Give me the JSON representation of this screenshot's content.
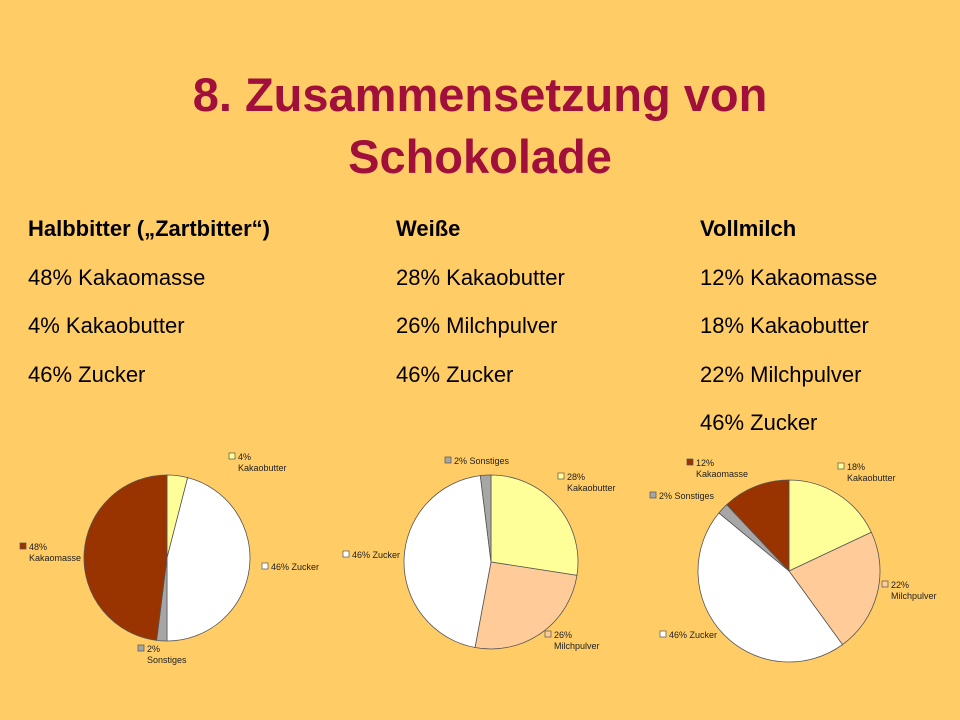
{
  "slide": {
    "title_line1": "8. Zusammensetzung von",
    "title_line2": "Schokolade",
    "colors": {
      "background": "#FFCC66",
      "title": "#A0103A"
    }
  },
  "columns": [
    {
      "heading": "Halbbitter („Zartbitter“)",
      "items": [
        "48% Kakaomasse",
        "4% Kakaobutter",
        "46% Zucker"
      ]
    },
    {
      "heading": "Weiße",
      "items": [
        "28% Kakaobutter",
        "26% Milchpulver",
        "46% Zucker"
      ]
    },
    {
      "heading": "Vollmilch",
      "items": [
        "12% Kakaomasse",
        "18% Kakaobutter",
        "22% Milchpulver",
        "46% Zucker"
      ]
    }
  ],
  "chart_data": [
    {
      "type": "pie",
      "title": "",
      "slices": [
        {
          "pct": "4%",
          "name": "Kakaobutter",
          "value": 4,
          "color": "#FFFF99"
        },
        {
          "pct": "46%",
          "name": "Zucker",
          "value": 46,
          "color": "#FFFFFF"
        },
        {
          "pct": "2%",
          "name": "Sonstiges",
          "value": 2,
          "color": "#A6A6A6"
        },
        {
          "pct": "48%",
          "name": "Kakaomasse",
          "value": 48,
          "color": "#993300"
        }
      ]
    },
    {
      "type": "pie",
      "title": "",
      "slices": [
        {
          "pct": "28%",
          "name": "Kakaobutter",
          "value": 28,
          "color": "#FFFF99"
        },
        {
          "pct": "26%",
          "name": "Milchpulver",
          "value": 26,
          "color": "#FFCC99"
        },
        {
          "pct": "46%",
          "name": "Zucker",
          "value": 46,
          "color": "#FFFFFF"
        },
        {
          "pct": "2%",
          "name": "Sonstiges",
          "value": 2,
          "color": "#A6A6A6"
        }
      ]
    },
    {
      "type": "pie",
      "title": "",
      "slices": [
        {
          "pct": "18%",
          "name": "Kakaobutter",
          "value": 18,
          "color": "#FFFF99"
        },
        {
          "pct": "22%",
          "name": "Milchpulver",
          "value": 22,
          "color": "#FFCC99"
        },
        {
          "pct": "46%",
          "name": "Zucker",
          "value": 46,
          "color": "#FFFFFF"
        },
        {
          "pct": "2%",
          "name": "Sonstiges",
          "value": 2,
          "color": "#A6A6A6"
        },
        {
          "pct": "12%",
          "name": "Kakaomasse",
          "value": 12,
          "color": "#993300"
        }
      ]
    }
  ]
}
